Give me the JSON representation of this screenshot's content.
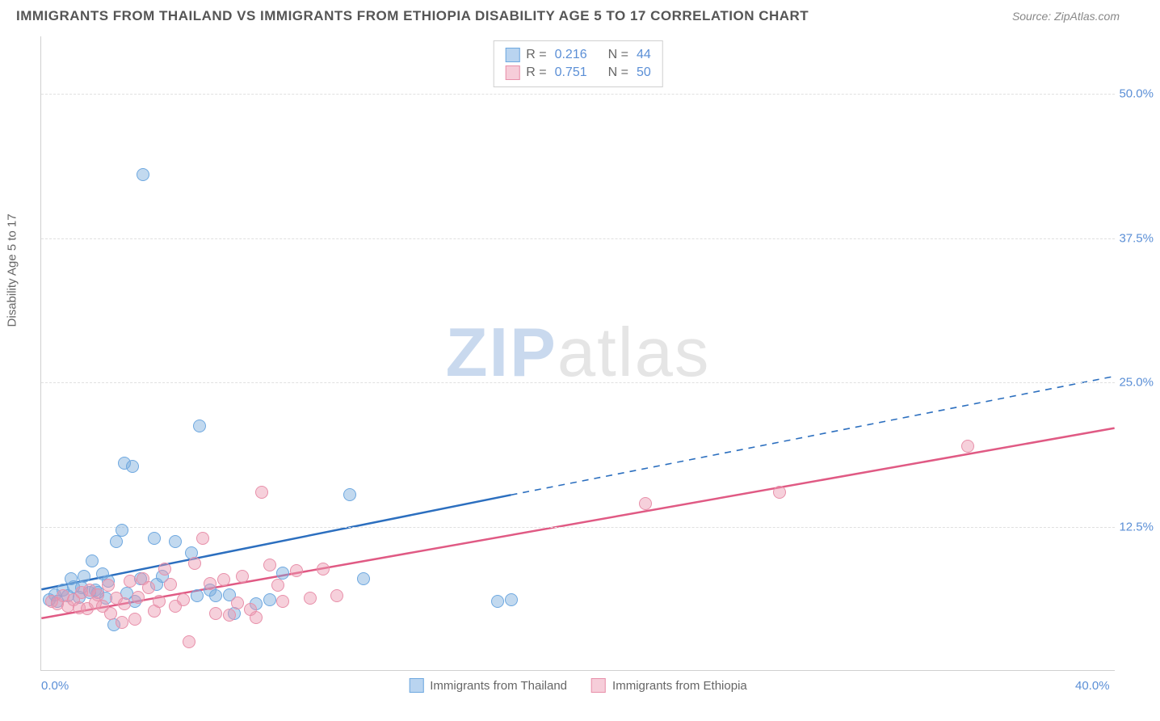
{
  "header": {
    "title": "IMMIGRANTS FROM THAILAND VS IMMIGRANTS FROM ETHIOPIA DISABILITY AGE 5 TO 17 CORRELATION CHART",
    "source_label": "Source: ",
    "source_name": "ZipAtlas.com"
  },
  "watermark": {
    "part1": "ZIP",
    "part2": "atlas"
  },
  "axes": {
    "y_label": "Disability Age 5 to 17",
    "x_min": 0,
    "x_max": 40,
    "y_min": 0,
    "y_max": 55,
    "x_ticks": [
      {
        "value": 0,
        "label": "0.0%"
      },
      {
        "value": 40,
        "label": "40.0%"
      }
    ],
    "y_ticks": [
      {
        "value": 12.5,
        "label": "12.5%"
      },
      {
        "value": 25.0,
        "label": "25.0%"
      },
      {
        "value": 37.5,
        "label": "37.5%"
      },
      {
        "value": 50.0,
        "label": "50.0%"
      }
    ],
    "grid_color": "#e0e0e0",
    "tick_label_color": "#5b8fd6"
  },
  "legend_top": {
    "rows": [
      {
        "swatch_fill": "#b9d4f0",
        "swatch_border": "#6ea8e0",
        "r_label": "R =",
        "r_value": "0.216",
        "n_label": "N =",
        "n_value": "44"
      },
      {
        "swatch_fill": "#f6cdd9",
        "swatch_border": "#e890aa",
        "r_label": "R =",
        "r_value": "0.751",
        "n_label": "N =",
        "n_value": "50"
      }
    ]
  },
  "legend_bottom": {
    "items": [
      {
        "swatch_fill": "#b9d4f0",
        "swatch_border": "#6ea8e0",
        "label": "Immigrants from Thailand"
      },
      {
        "swatch_fill": "#f6cdd9",
        "swatch_border": "#e890aa",
        "label": "Immigrants from Ethiopia"
      }
    ]
  },
  "series": [
    {
      "name": "Immigrants from Thailand",
      "point_fill": "rgba(120,170,220,0.45)",
      "point_stroke": "#6ea8e0",
      "point_radius": 8,
      "trend_color": "#2c6fbf",
      "trend_width": 2.5,
      "trend": {
        "x1": 0,
        "y1": 7.0,
        "x2_solid": 17.5,
        "y2_solid": 15.2,
        "x2_dash": 40,
        "y2_dash": 25.5
      },
      "points": [
        [
          0.3,
          6.2
        ],
        [
          0.5,
          6.6
        ],
        [
          0.6,
          6.0
        ],
        [
          0.8,
          7.0
        ],
        [
          1.0,
          6.5
        ],
        [
          1.1,
          8.0
        ],
        [
          1.2,
          7.3
        ],
        [
          1.4,
          6.4
        ],
        [
          1.5,
          7.2
        ],
        [
          1.6,
          8.2
        ],
        [
          1.8,
          6.8
        ],
        [
          1.9,
          9.5
        ],
        [
          2.0,
          7.0
        ],
        [
          2.1,
          6.8
        ],
        [
          2.3,
          8.4
        ],
        [
          2.4,
          6.3
        ],
        [
          2.5,
          7.8
        ],
        [
          2.7,
          4.0
        ],
        [
          2.8,
          11.2
        ],
        [
          3.0,
          12.2
        ],
        [
          3.1,
          18.0
        ],
        [
          3.2,
          6.7
        ],
        [
          3.4,
          17.7
        ],
        [
          3.5,
          6.0
        ],
        [
          3.7,
          8.0
        ],
        [
          3.8,
          43.0
        ],
        [
          4.2,
          11.5
        ],
        [
          4.3,
          7.5
        ],
        [
          4.5,
          8.2
        ],
        [
          5.0,
          11.2
        ],
        [
          5.6,
          10.2
        ],
        [
          5.8,
          6.5
        ],
        [
          5.9,
          21.2
        ],
        [
          6.3,
          7.0
        ],
        [
          6.5,
          6.5
        ],
        [
          7.0,
          6.6
        ],
        [
          7.2,
          5.0
        ],
        [
          8.0,
          5.8
        ],
        [
          8.5,
          6.2
        ],
        [
          9.0,
          8.5
        ],
        [
          11.5,
          15.3
        ],
        [
          12.0,
          8.0
        ],
        [
          17.0,
          6.0
        ],
        [
          17.5,
          6.2
        ]
      ]
    },
    {
      "name": "Immigrants from Ethiopia",
      "point_fill": "rgba(235,150,175,0.45)",
      "point_stroke": "#e890aa",
      "point_radius": 8,
      "trend_color": "#e05a84",
      "trend_width": 2.5,
      "trend": {
        "x1": 0,
        "y1": 4.5,
        "x2_solid": 40,
        "y2_solid": 21.0,
        "x2_dash": 40,
        "y2_dash": 21.0
      },
      "points": [
        [
          0.4,
          6.0
        ],
        [
          0.6,
          5.8
        ],
        [
          0.8,
          6.5
        ],
        [
          1.0,
          5.6
        ],
        [
          1.2,
          6.2
        ],
        [
          1.4,
          5.5
        ],
        [
          1.5,
          6.8
        ],
        [
          1.7,
          5.4
        ],
        [
          1.8,
          7.0
        ],
        [
          2.0,
          5.9
        ],
        [
          2.1,
          6.6
        ],
        [
          2.3,
          5.6
        ],
        [
          2.5,
          7.4
        ],
        [
          2.6,
          5.0
        ],
        [
          2.8,
          6.3
        ],
        [
          3.0,
          4.2
        ],
        [
          3.1,
          5.8
        ],
        [
          3.3,
          7.8
        ],
        [
          3.5,
          4.5
        ],
        [
          3.6,
          6.4
        ],
        [
          3.8,
          8.0
        ],
        [
          4.0,
          7.2
        ],
        [
          4.2,
          5.2
        ],
        [
          4.4,
          6.0
        ],
        [
          4.6,
          8.8
        ],
        [
          4.8,
          7.5
        ],
        [
          5.0,
          5.6
        ],
        [
          5.3,
          6.2
        ],
        [
          5.5,
          2.5
        ],
        [
          5.7,
          9.3
        ],
        [
          6.0,
          11.5
        ],
        [
          6.3,
          7.6
        ],
        [
          6.5,
          5.0
        ],
        [
          6.8,
          7.9
        ],
        [
          7.0,
          4.8
        ],
        [
          7.3,
          5.9
        ],
        [
          7.5,
          8.2
        ],
        [
          7.8,
          5.3
        ],
        [
          8.0,
          4.6
        ],
        [
          8.2,
          15.5
        ],
        [
          8.5,
          9.2
        ],
        [
          8.8,
          7.4
        ],
        [
          9.0,
          6.0
        ],
        [
          9.5,
          8.7
        ],
        [
          10.0,
          6.3
        ],
        [
          10.5,
          8.8
        ],
        [
          11.0,
          6.5
        ],
        [
          22.5,
          14.5
        ],
        [
          27.5,
          15.5
        ],
        [
          34.5,
          19.5
        ]
      ]
    }
  ]
}
